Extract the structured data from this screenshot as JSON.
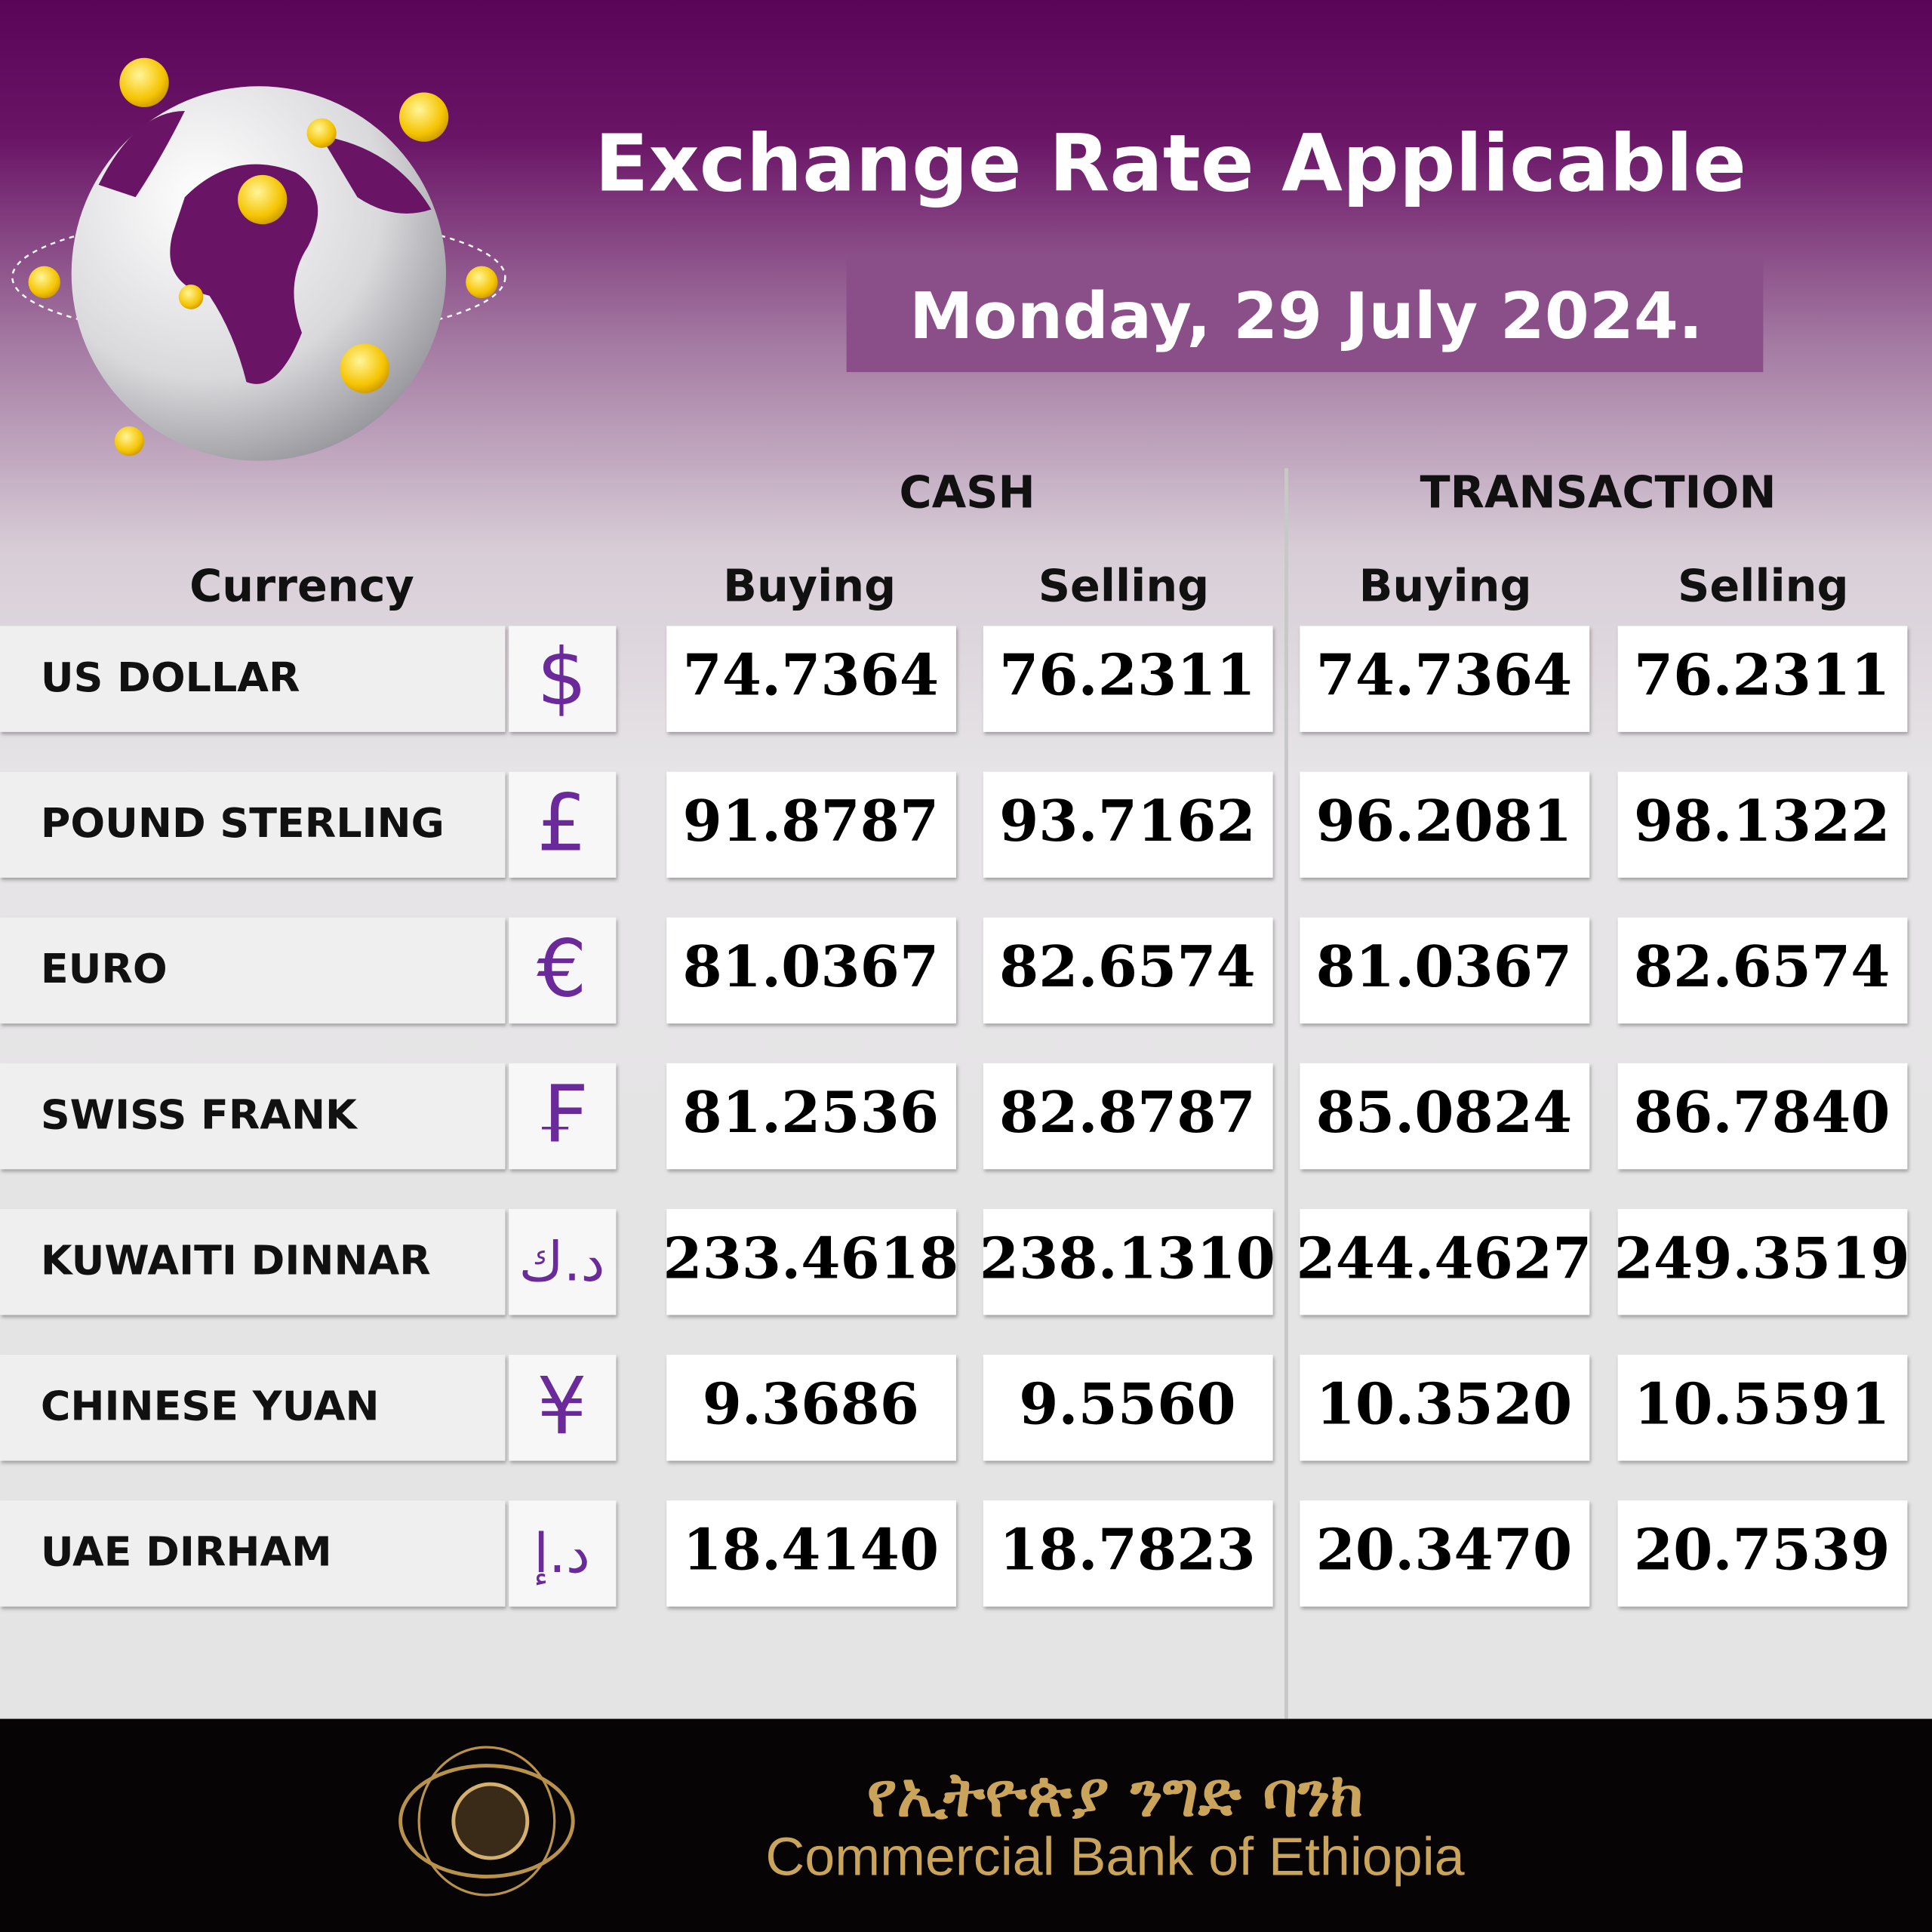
{
  "header": {
    "title": "Exchange Rate Applicable",
    "date": "Monday, 29 July 2024."
  },
  "table": {
    "group_headers": [
      "CASH",
      "TRANSACTION"
    ],
    "columns": [
      "Currency",
      "Buying",
      "Selling",
      "Buying",
      "Selling"
    ],
    "rows": [
      [
        "US DOLLAR",
        "$",
        "74.7364",
        "76.2311",
        "74.7364",
        "76.2311"
      ],
      [
        "POUND STERLING",
        "£",
        "91.8787",
        "93.7162",
        "96.2081",
        "98.1322"
      ],
      [
        "EURO",
        "€",
        "81.0367",
        "82.6574",
        "81.0367",
        "82.6574"
      ],
      [
        "SWISS FRANK",
        "₣",
        "81.2536",
        "82.8787",
        "85.0824",
        "86.7840"
      ],
      [
        "KUWAITI DINNAR",
        "د.ك",
        "233.4618",
        "238.1310",
        "244.4627",
        "249.3519"
      ],
      [
        "CHINESE YUAN",
        "¥",
        "9.3686",
        "9.5560",
        "10.3520",
        "10.5591"
      ],
      [
        "UAE DIRHAM",
        "د.إ",
        "18.4140",
        "18.7823",
        "20.3470",
        "20.7539"
      ]
    ]
  },
  "footer": {
    "amharic": "የኢትዮጵያ ንግድ ባንክ",
    "english": "Commercial Bank of Ethiopia"
  }
}
